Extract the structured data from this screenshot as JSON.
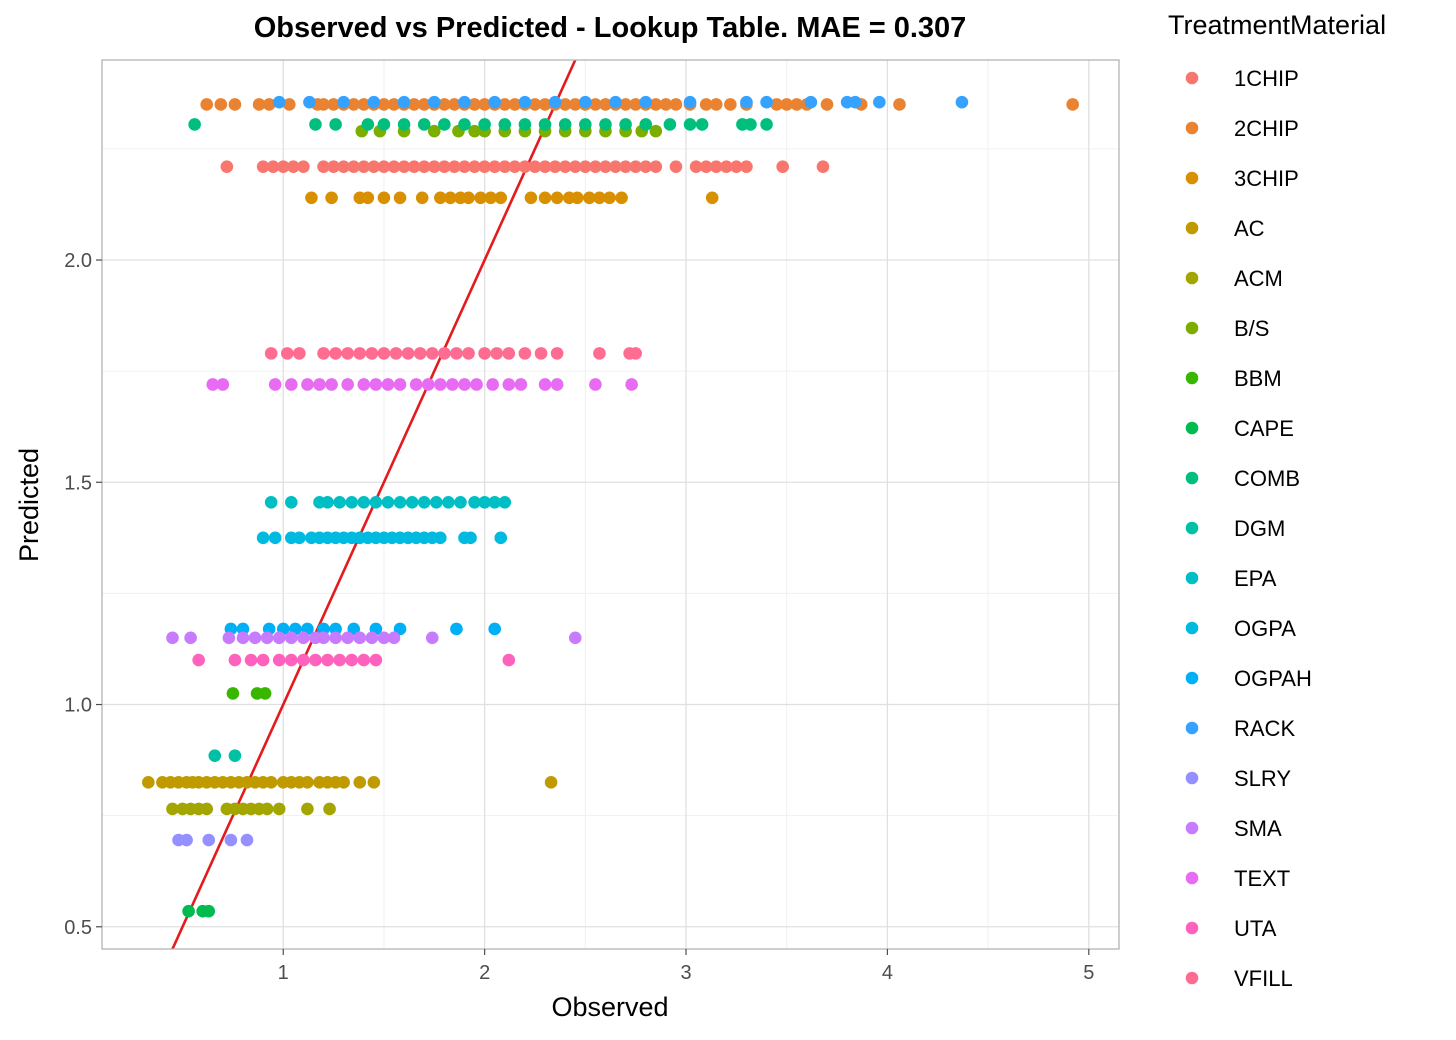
{
  "chart_data": {
    "type": "scatter",
    "title": "Observed vs Predicted - Lookup Table. MAE = 0.307",
    "xlabel": "Observed",
    "ylabel": "Predicted",
    "xlim": [
      0.1,
      5.15
    ],
    "ylim": [
      0.45,
      2.45
    ],
    "x_ticks": [
      "1",
      "2",
      "3",
      "4",
      "5"
    ],
    "y_ticks": [
      "0.5",
      "1.0",
      "1.5",
      "2.0"
    ],
    "grid": true,
    "legend_title": "TreatmentMaterial",
    "legend_position": "right",
    "reference_line": {
      "slope": 1,
      "intercept": 0,
      "color": "#e41a1c"
    },
    "series": [
      {
        "name": "1CHIP",
        "color": "#F8766D",
        "y": 2.21,
        "x": [
          0.72,
          0.9,
          0.95,
          1.0,
          1.05,
          1.1,
          1.2,
          1.25,
          1.3,
          1.35,
          1.4,
          1.45,
          1.5,
          1.55,
          1.6,
          1.65,
          1.7,
          1.75,
          1.8,
          1.85,
          1.9,
          1.95,
          2.0,
          2.05,
          2.1,
          2.15,
          2.2,
          2.25,
          2.3,
          2.35,
          2.4,
          2.45,
          2.5,
          2.55,
          2.6,
          2.65,
          2.7,
          2.75,
          2.8,
          2.85,
          2.95,
          3.05,
          3.1,
          3.15,
          3.2,
          3.25,
          3.3,
          3.48,
          3.68
        ]
      },
      {
        "name": "2CHIP",
        "color": "#EA8331",
        "y": 2.35,
        "x": [
          0.62,
          0.69,
          0.76,
          0.88,
          0.93,
          1.03,
          1.17,
          1.2,
          1.25,
          1.3,
          1.35,
          1.4,
          1.45,
          1.5,
          1.55,
          1.6,
          1.65,
          1.7,
          1.75,
          1.8,
          1.85,
          1.9,
          1.95,
          2.0,
          2.05,
          2.1,
          2.15,
          2.2,
          2.25,
          2.3,
          2.35,
          2.4,
          2.45,
          2.5,
          2.55,
          2.6,
          2.65,
          2.7,
          2.75,
          2.8,
          2.85,
          2.9,
          2.95,
          3.02,
          3.1,
          3.15,
          3.22,
          3.3,
          3.45,
          3.5,
          3.55,
          3.6,
          3.7,
          3.87,
          4.06,
          4.92
        ]
      },
      {
        "name": "3CHIP",
        "color": "#D89000",
        "y": 2.14,
        "x": [
          1.14,
          1.24,
          1.38,
          1.42,
          1.5,
          1.58,
          1.69,
          1.78,
          1.83,
          1.88,
          1.92,
          1.98,
          2.03,
          2.08,
          2.23,
          2.3,
          2.36,
          2.42,
          2.46,
          2.52,
          2.57,
          2.62,
          2.68,
          3.13
        ]
      },
      {
        "name": "AC",
        "color": "#C09B00",
        "y": 0.825,
        "x": [
          0.33,
          0.4,
          0.44,
          0.48,
          0.52,
          0.55,
          0.58,
          0.62,
          0.66,
          0.7,
          0.74,
          0.78,
          0.82,
          0.86,
          0.9,
          0.94,
          1.0,
          1.04,
          1.08,
          1.12,
          1.18,
          1.22,
          1.26,
          1.3,
          1.38,
          1.45,
          2.33
        ]
      },
      {
        "name": "ACM",
        "color": "#A3A500",
        "y": 0.765,
        "x": [
          0.45,
          0.5,
          0.54,
          0.58,
          0.62,
          0.72,
          0.76,
          0.8,
          0.84,
          0.88,
          0.92,
          0.98,
          1.12,
          1.23
        ]
      },
      {
        "name": "B/S",
        "color": "#7CAE00",
        "y": 2.29,
        "x": [
          1.39,
          1.48,
          1.6,
          1.75,
          1.87,
          1.95,
          2.0,
          2.1,
          2.2,
          2.3,
          2.4,
          2.5,
          2.6,
          2.7,
          2.78,
          2.85
        ]
      },
      {
        "name": "BBM",
        "color": "#39B600",
        "y": 1.025,
        "x": [
          0.75,
          0.87,
          0.91
        ]
      },
      {
        "name": "CAPE",
        "color": "#00BB4E",
        "y": 0.535,
        "x": [
          0.53,
          0.6,
          0.63
        ]
      },
      {
        "name": "COMB",
        "color": "#00BF7D",
        "y": 2.305,
        "x": [
          0.56,
          1.16,
          1.26,
          1.42,
          1.5,
          1.6,
          1.7,
          1.8,
          1.9,
          2.0,
          2.1,
          2.2,
          2.3,
          2.4,
          2.5,
          2.6,
          2.7,
          2.8,
          2.92,
          3.02,
          3.08,
          3.28,
          3.32,
          3.4
        ]
      },
      {
        "name": "DGM",
        "color": "#00C1A3",
        "y": 0.885,
        "x": [
          0.66,
          0.76
        ]
      },
      {
        "name": "EPA",
        "color": "#00BFC4",
        "y": 1.455,
        "x": [
          0.94,
          1.04,
          1.18,
          1.22,
          1.28,
          1.34,
          1.4,
          1.46,
          1.52,
          1.58,
          1.64,
          1.7,
          1.76,
          1.82,
          1.88,
          1.95,
          2.0,
          2.05,
          2.1
        ]
      },
      {
        "name": "OGPA",
        "color": "#00BAE0",
        "y": 1.375,
        "x": [
          0.9,
          0.96,
          1.04,
          1.08,
          1.14,
          1.18,
          1.22,
          1.26,
          1.3,
          1.34,
          1.38,
          1.42,
          1.46,
          1.5,
          1.54,
          1.58,
          1.62,
          1.66,
          1.7,
          1.74,
          1.78,
          1.9,
          1.93,
          2.08
        ]
      },
      {
        "name": "OGPAH",
        "color": "#00B0F6",
        "y": 1.17,
        "x": [
          0.74,
          0.8,
          0.93,
          1.0,
          1.06,
          1.12,
          1.2,
          1.26,
          1.35,
          1.46,
          1.58,
          1.86,
          2.05
        ]
      },
      {
        "name": "RACK",
        "color": "#35A2FF",
        "y": 2.355,
        "x": [
          0.98,
          1.13,
          1.3,
          1.45,
          1.6,
          1.75,
          1.9,
          2.05,
          2.2,
          2.35,
          2.5,
          2.65,
          2.8,
          3.02,
          3.3,
          3.4,
          3.62,
          3.8,
          3.84,
          3.96,
          4.37
        ]
      },
      {
        "name": "SLRY",
        "color": "#9590FF",
        "y": 0.695,
        "x": [
          0.48,
          0.52,
          0.63,
          0.74,
          0.82
        ]
      },
      {
        "name": "SMA",
        "color": "#C77CFF",
        "y": 1.15,
        "x": [
          0.45,
          0.54,
          0.73,
          0.8,
          0.86,
          0.92,
          0.98,
          1.04,
          1.1,
          1.16,
          1.2,
          1.26,
          1.32,
          1.38,
          1.44,
          1.5,
          1.55,
          1.74,
          2.45
        ]
      },
      {
        "name": "TEXT",
        "color": "#E76BF3",
        "y": 1.72,
        "x": [
          0.65,
          0.7,
          0.96,
          1.04,
          1.12,
          1.18,
          1.24,
          1.32,
          1.4,
          1.46,
          1.52,
          1.58,
          1.66,
          1.72,
          1.78,
          1.84,
          1.9,
          1.96,
          2.04,
          2.12,
          2.18,
          2.3,
          2.36,
          2.55,
          2.73
        ]
      },
      {
        "name": "UTA",
        "color": "#FF62BC",
        "y": 1.1,
        "x": [
          0.58,
          0.76,
          0.84,
          0.9,
          0.98,
          1.04,
          1.1,
          1.16,
          1.22,
          1.28,
          1.34,
          1.4,
          1.46,
          2.12
        ]
      },
      {
        "name": "VFILL",
        "color": "#FF6C91",
        "y": 1.79,
        "x": [
          0.94,
          1.02,
          1.08,
          1.2,
          1.26,
          1.32,
          1.38,
          1.44,
          1.5,
          1.56,
          1.62,
          1.68,
          1.74,
          1.8,
          1.86,
          1.92,
          2.0,
          2.06,
          2.12,
          2.2,
          2.28,
          2.36,
          2.57,
          2.72,
          2.75
        ]
      }
    ]
  }
}
